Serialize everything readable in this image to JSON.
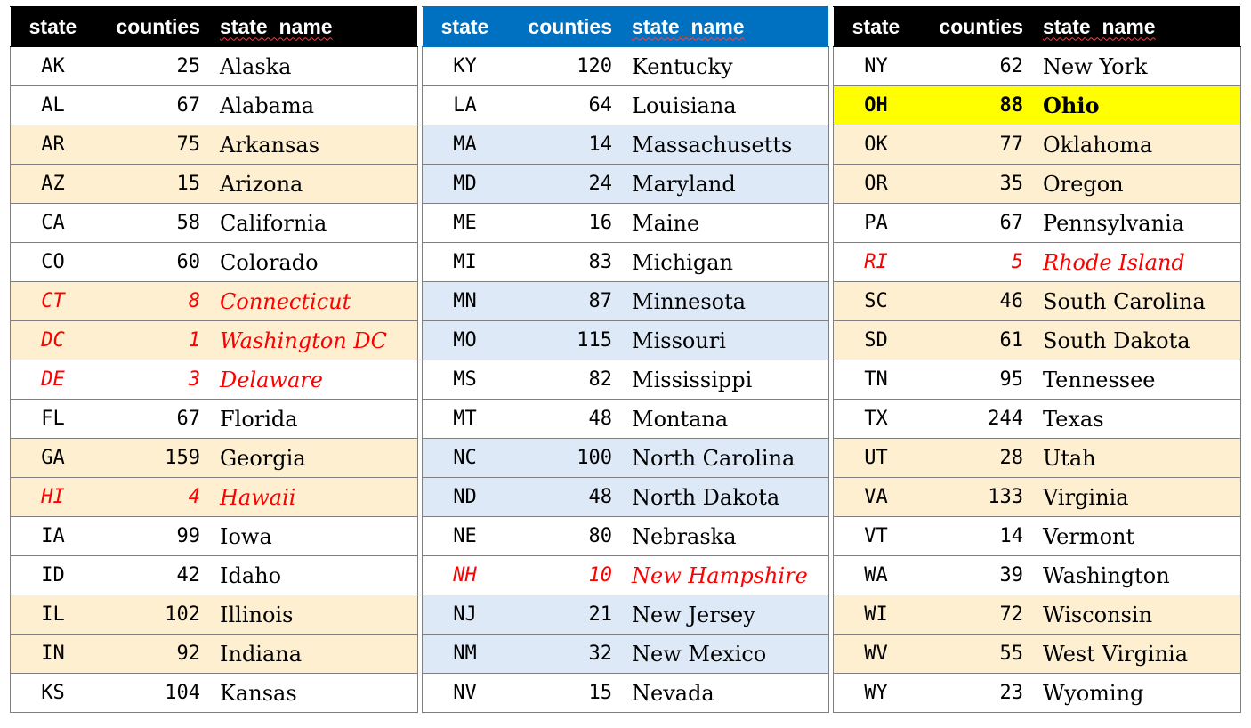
{
  "headers": {
    "state": "state",
    "counties": "counties",
    "state_name": "state_name"
  },
  "colors": {
    "header_black": "#000000",
    "header_blue": "#0070c0",
    "band_tan": "#fdefd0",
    "band_blue": "#dde9f7",
    "highlight": "#ffff00",
    "red_text": "#ff0000"
  },
  "tables": [
    {
      "header_style": "black",
      "rows": [
        {
          "state": "AK",
          "counties": "25",
          "name": "Alaska",
          "style": "white"
        },
        {
          "state": "AL",
          "counties": "67",
          "name": "Alabama",
          "style": "white"
        },
        {
          "state": "AR",
          "counties": "75",
          "name": "Arkansas",
          "style": "band"
        },
        {
          "state": "AZ",
          "counties": "15",
          "name": "Arizona",
          "style": "band"
        },
        {
          "state": "CA",
          "counties": "58",
          "name": "California",
          "style": "white"
        },
        {
          "state": "CO",
          "counties": "60",
          "name": "Colorado",
          "style": "white"
        },
        {
          "state": "CT",
          "counties": "8",
          "name": "Connecticut",
          "style": "band",
          "red": true
        },
        {
          "state": "DC",
          "counties": "1",
          "name": "Washington DC",
          "style": "band",
          "red": true
        },
        {
          "state": "DE",
          "counties": "3",
          "name": "Delaware",
          "style": "white",
          "red": true
        },
        {
          "state": "FL",
          "counties": "67",
          "name": "Florida",
          "style": "white"
        },
        {
          "state": "GA",
          "counties": "159",
          "name": "Georgia",
          "style": "band"
        },
        {
          "state": "HI",
          "counties": "4",
          "name": "Hawaii",
          "style": "band",
          "red": true
        },
        {
          "state": "IA",
          "counties": "99",
          "name": "Iowa",
          "style": "white"
        },
        {
          "state": "ID",
          "counties": "42",
          "name": "Idaho",
          "style": "white"
        },
        {
          "state": "IL",
          "counties": "102",
          "name": "Illinois",
          "style": "band"
        },
        {
          "state": "IN",
          "counties": "92",
          "name": "Indiana",
          "style": "band"
        },
        {
          "state": "KS",
          "counties": "104",
          "name": "Kansas",
          "style": "white"
        }
      ]
    },
    {
      "header_style": "blue",
      "rows": [
        {
          "state": "KY",
          "counties": "120",
          "name": "Kentucky",
          "style": "white"
        },
        {
          "state": "LA",
          "counties": "64",
          "name": "Louisiana",
          "style": "white"
        },
        {
          "state": "MA",
          "counties": "14",
          "name": "Massachusetts",
          "style": "band"
        },
        {
          "state": "MD",
          "counties": "24",
          "name": "Maryland",
          "style": "band"
        },
        {
          "state": "ME",
          "counties": "16",
          "name": "Maine",
          "style": "white"
        },
        {
          "state": "MI",
          "counties": "83",
          "name": "Michigan",
          "style": "white"
        },
        {
          "state": "MN",
          "counties": "87",
          "name": "Minnesota",
          "style": "band"
        },
        {
          "state": "MO",
          "counties": "115",
          "name": "Missouri",
          "style": "band"
        },
        {
          "state": "MS",
          "counties": "82",
          "name": "Mississippi",
          "style": "white"
        },
        {
          "state": "MT",
          "counties": "48",
          "name": "Montana",
          "style": "white"
        },
        {
          "state": "NC",
          "counties": "100",
          "name": "North Carolina",
          "style": "band"
        },
        {
          "state": "ND",
          "counties": "48",
          "name": "North Dakota",
          "style": "band"
        },
        {
          "state": "NE",
          "counties": "80",
          "name": "Nebraska",
          "style": "white"
        },
        {
          "state": "NH",
          "counties": "10",
          "name": "New Hampshire",
          "style": "white",
          "red": true
        },
        {
          "state": "NJ",
          "counties": "21",
          "name": "New Jersey",
          "style": "band"
        },
        {
          "state": "NM",
          "counties": "32",
          "name": "New Mexico",
          "style": "band"
        },
        {
          "state": "NV",
          "counties": "15",
          "name": "Nevada",
          "style": "white"
        }
      ]
    },
    {
      "header_style": "black",
      "rows": [
        {
          "state": "NY",
          "counties": "62",
          "name": "New York",
          "style": "white"
        },
        {
          "state": "OH",
          "counties": "88",
          "name": "Ohio",
          "style": "highlight"
        },
        {
          "state": "OK",
          "counties": "77",
          "name": "Oklahoma",
          "style": "band"
        },
        {
          "state": "OR",
          "counties": "35",
          "name": "Oregon",
          "style": "band"
        },
        {
          "state": "PA",
          "counties": "67",
          "name": "Pennsylvania",
          "style": "white"
        },
        {
          "state": "RI",
          "counties": "5",
          "name": "Rhode Island",
          "style": "white",
          "red": true
        },
        {
          "state": "SC",
          "counties": "46",
          "name": "South Carolina",
          "style": "band"
        },
        {
          "state": "SD",
          "counties": "61",
          "name": "South Dakota",
          "style": "band"
        },
        {
          "state": "TN",
          "counties": "95",
          "name": "Tennessee",
          "style": "white"
        },
        {
          "state": "TX",
          "counties": "244",
          "name": "Texas",
          "style": "white"
        },
        {
          "state": "UT",
          "counties": "28",
          "name": "Utah",
          "style": "band"
        },
        {
          "state": "VA",
          "counties": "133",
          "name": "Virginia",
          "style": "band"
        },
        {
          "state": "VT",
          "counties": "14",
          "name": "Vermont",
          "style": "white"
        },
        {
          "state": "WA",
          "counties": "39",
          "name": "Washington",
          "style": "white"
        },
        {
          "state": "WI",
          "counties": "72",
          "name": "Wisconsin",
          "style": "band"
        },
        {
          "state": "WV",
          "counties": "55",
          "name": "West Virginia",
          "style": "band"
        },
        {
          "state": "WY",
          "counties": "23",
          "name": "Wyoming",
          "style": "white"
        }
      ]
    }
  ]
}
